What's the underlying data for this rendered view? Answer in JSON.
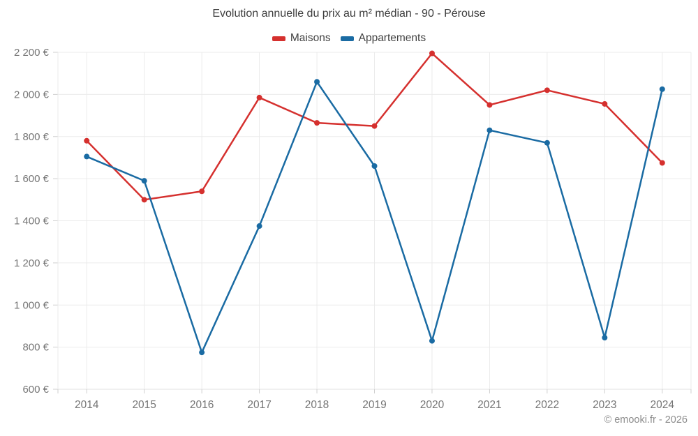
{
  "chart_data": {
    "type": "line",
    "title": "Evolution annuelle du prix au m² médian - 90 - Pérouse",
    "categories": [
      "2014",
      "2015",
      "2016",
      "2017",
      "2018",
      "2019",
      "2020",
      "2021",
      "2022",
      "2023",
      "2024"
    ],
    "series": [
      {
        "name": "Maisons",
        "color": "#d5302e",
        "values": [
          1780,
          1500,
          1540,
          1985,
          1865,
          1850,
          2195,
          1950,
          2020,
          1955,
          1675
        ]
      },
      {
        "name": "Appartements",
        "color": "#1a6ba3",
        "values": [
          1705,
          1590,
          775,
          1375,
          2060,
          1660,
          830,
          1830,
          1770,
          845,
          2025
        ]
      }
    ],
    "ylim": [
      600,
      2200
    ],
    "y_ticks": [
      600,
      800,
      1000,
      1200,
      1400,
      1600,
      1800,
      2000,
      2200
    ],
    "y_tick_labels": [
      "600 €",
      "800 €",
      "1 000 €",
      "1 200 €",
      "1 400 €",
      "1 600 €",
      "1 800 €",
      "2 000 €",
      "2 200 €"
    ],
    "grid": true,
    "legend_position": "top",
    "marker_radius": 4,
    "line_width": 2.5
  },
  "footer": {
    "copyright": "© emooki.fr - 2026"
  },
  "colors": {
    "grid": "#ebebeb",
    "axis_line": "#e0e0e0",
    "tick_mark": "#cfcfcf",
    "tick_text": "#757575",
    "title_text": "#3d3d3d",
    "legend_text": "#424242",
    "copyright_text": "#8d8d8d",
    "background": "#ffffff"
  }
}
